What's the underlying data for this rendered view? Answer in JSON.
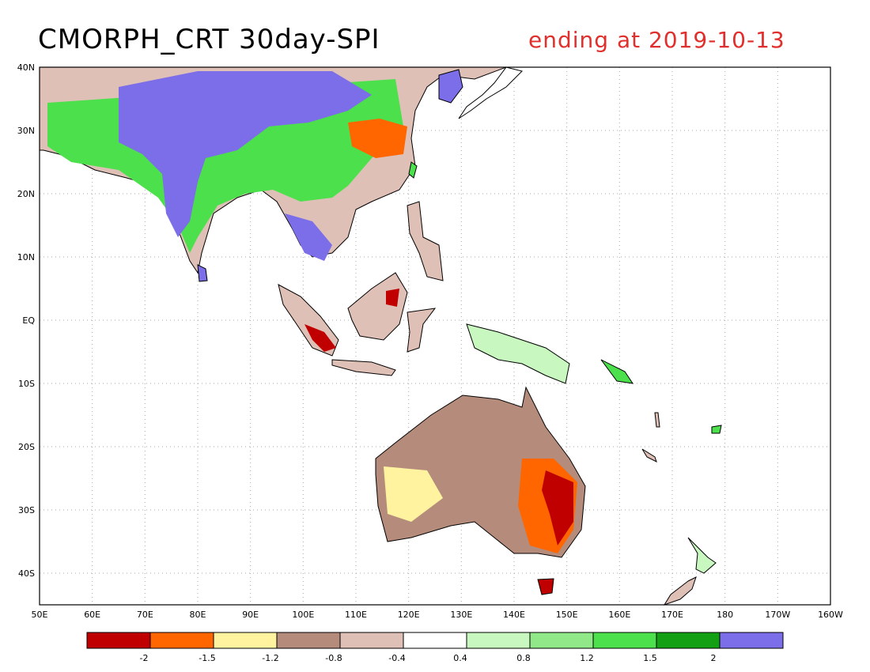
{
  "header": {
    "title": "CMORPH_CRT 30day-SPI",
    "date_label": "ending at 2019-10-13",
    "date_color": "#e0302d"
  },
  "map": {
    "lat_labels": [
      "40N",
      "30N",
      "20N",
      "10N",
      "EQ",
      "10S",
      "20S",
      "30S",
      "40S"
    ],
    "lon_labels": [
      "50E",
      "60E",
      "70E",
      "80E",
      "90E",
      "100E",
      "110E",
      "120E",
      "130E",
      "140E",
      "150E",
      "160E",
      "170E",
      "180",
      "170W",
      "160W"
    ]
  },
  "legend": {
    "colors": [
      "#c00000",
      "#ff6600",
      "#fff3a0",
      "#b58c7c",
      "#dfc0b6",
      "#ffffff",
      "#c8f7c0",
      "#90e888",
      "#4ce04c",
      "#14a014",
      "#7b6ee8"
    ],
    "labels": [
      "-2",
      "-1.5",
      "-1.2",
      "-0.8",
      "-0.4",
      "0.4",
      "0.8",
      "1.2",
      "1.5",
      "2"
    ]
  }
}
